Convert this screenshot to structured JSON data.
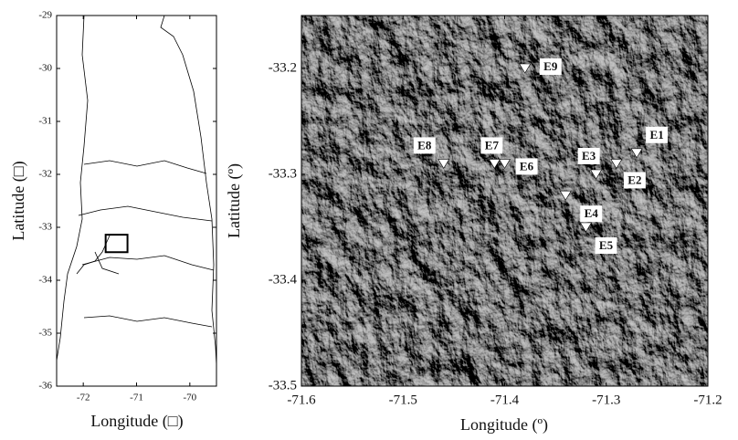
{
  "chart_data": [
    {
      "type": "map",
      "xlabel": "Longitude (□)",
      "ylabel": "Latitude (□)",
      "xlim": [
        -72.5,
        -69.5
      ],
      "ylim": [
        -36,
        -29
      ],
      "xticks": [
        -72,
        -71,
        -70
      ],
      "yticks": [
        -36,
        -35,
        -34,
        -33,
        -32,
        -31,
        -30,
        -29
      ],
      "region": {
        "lon": [
          -71.58,
          -71.17
        ],
        "lat": [
          -33.47,
          -33.14
        ]
      }
    },
    {
      "type": "scatter",
      "xlabel": "Longitude (º)",
      "ylabel": "Latitude (º)",
      "xlim": [
        -71.6,
        -71.2
      ],
      "ylim": [
        -33.5,
        -33.15
      ],
      "xticks": [
        -71.6,
        -71.5,
        -71.4,
        -71.3,
        -71.2
      ],
      "yticks": [
        -33.5,
        -33.4,
        -33.3,
        -33.2
      ],
      "labels": [
        "E1",
        "E2",
        "E3",
        "E4",
        "E5",
        "E6",
        "E7",
        "E8",
        "E9"
      ],
      "x": [
        -71.27,
        -71.29,
        -71.31,
        -71.34,
        -71.32,
        -71.4,
        -71.41,
        -71.46,
        -71.38
      ],
      "values": [
        -33.28,
        -33.29,
        -33.3,
        -33.32,
        -33.35,
        -33.29,
        -33.29,
        -33.29,
        -33.2
      ],
      "color": "#ffffff"
    }
  ]
}
